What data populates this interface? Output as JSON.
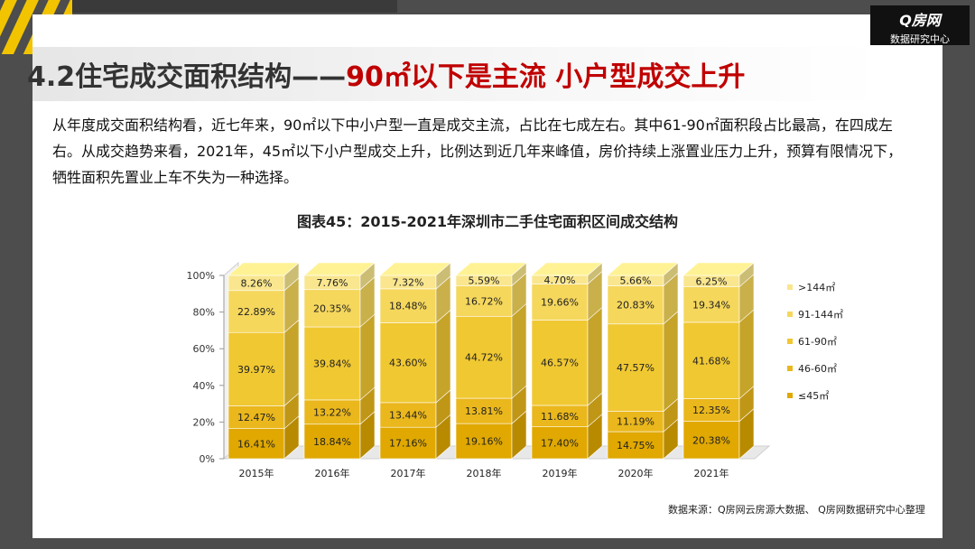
{
  "logo": {
    "line1": "Q房网",
    "line2": "数据研究中心"
  },
  "title": {
    "prefix": "4.2住宅成交面积结构——",
    "highlight": "90㎡以下是主流 小户型成交上升"
  },
  "paragraph": "从年度成交面积结构看，近七年来，90㎡以下中小户型一直是成交主流，占比在七成左右。其中61-90㎡面积段占比最高，在四成左右。从成交趋势来看，2021年，45㎡以下小户型成交上升，比例达到近几年来峰值，房价持续上涨置业压力上升，预算有限情况下，牺牲面积先置业上车不失为一种选择。",
  "source": "数据来源：Q房网云房源大数据、 Q房网数据研究中心整理",
  "chart_data": {
    "type": "bar",
    "stacked": true,
    "title": "图表45：2015-2021年深圳市二手住宅面积区间成交结构",
    "categories": [
      "2015年",
      "2016年",
      "2017年",
      "2018年",
      "2019年",
      "2020年",
      "2021年"
    ],
    "ylim": [
      0,
      100
    ],
    "yticks": [
      "0%",
      "20%",
      "40%",
      "60%",
      "80%",
      "100%"
    ],
    "legend_position": "right",
    "series": [
      {
        "name": "≤45㎡",
        "color": "#e0a800",
        "values": [
          16.41,
          18.84,
          17.16,
          19.16,
          17.4,
          14.75,
          20.38
        ],
        "labels": [
          "16.41%",
          "18.84%",
          "17.16%",
          "19.16%",
          "17.40%",
          "14.75%",
          "20.38%"
        ]
      },
      {
        "name": "46-60㎡",
        "color": "#eab71c",
        "values": [
          12.47,
          13.22,
          13.44,
          13.81,
          11.68,
          11.19,
          12.35
        ],
        "labels": [
          "12.47%",
          "13.22%",
          "13.44%",
          "13.81%",
          "11.68%",
          "11.19%",
          "12.35%"
        ]
      },
      {
        "name": "61-90㎡",
        "color": "#f0c832",
        "values": [
          39.97,
          39.84,
          43.6,
          44.72,
          46.57,
          47.57,
          41.68
        ],
        "labels": [
          "39.97%",
          "39.84%",
          "43.60%",
          "44.72%",
          "46.57%",
          "47.57%",
          "41.68%"
        ]
      },
      {
        "name": "91-144㎡",
        "color": "#f5d75c",
        "values": [
          22.89,
          20.35,
          18.48,
          16.72,
          19.66,
          20.83,
          19.34
        ],
        "labels": [
          "22.89%",
          "20.35%",
          "18.48%",
          "16.72%",
          "19.66%",
          "20.83%",
          "19.34%"
        ]
      },
      {
        "name": ">144㎡",
        "color": "#f9e68e",
        "values": [
          8.26,
          7.76,
          7.32,
          5.59,
          4.7,
          5.66,
          6.25
        ],
        "labels": [
          "8.26%",
          "7.76%",
          "7.32%",
          "5.59%",
          "4.70%",
          "5.66%",
          "6.25%"
        ]
      }
    ]
  }
}
